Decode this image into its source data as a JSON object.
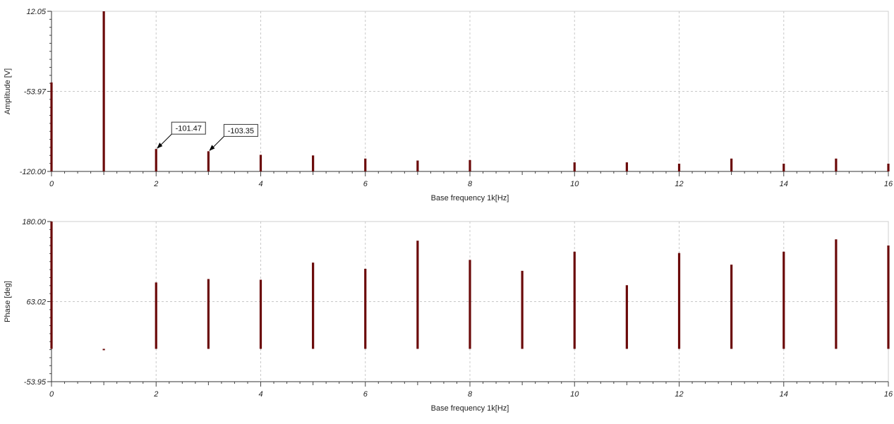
{
  "chart_data": [
    {
      "type": "bar",
      "xlabel": "Base frequency 1k[Hz]",
      "ylabel": "Amplitude [V]",
      "ylim": [
        -120.0,
        12.05
      ],
      "xlim": [
        0,
        16
      ],
      "y_ticks": [
        "12.05",
        "-53.97",
        "-120.00"
      ],
      "y_tick_values": [
        12.05,
        -53.97,
        -120.0
      ],
      "x_ticks": [
        "0",
        "2",
        "4",
        "6",
        "8",
        "10",
        "12",
        "14",
        "16"
      ],
      "grid": true,
      "series": [
        {
          "color": "#6b0a0a",
          "x": [
            0,
            1,
            2,
            3,
            4,
            5,
            6,
            7,
            8,
            10,
            11,
            12,
            13,
            14,
            15,
            16
          ],
          "values": [
            -46.6,
            12.05,
            -101.47,
            -103.35,
            -106.3,
            -106.8,
            -109.4,
            -111.0,
            -110.6,
            -112.5,
            -112.5,
            -113.6,
            -109.4,
            -113.6,
            -109.4,
            -113.6
          ]
        }
      ],
      "annotations": [
        {
          "x": 2,
          "y": -101.47,
          "text": "-101.47"
        },
        {
          "x": 3,
          "y": -103.35,
          "text": "-103.35"
        }
      ]
    },
    {
      "type": "bar",
      "xlabel": "Base frequency 1k[Hz]",
      "ylabel": "Phase [deg]",
      "ylim": [
        -53.95,
        180.0
      ],
      "xlim": [
        0,
        16
      ],
      "baseline": -6.0,
      "y_ticks": [
        "180.00",
        "63.02",
        "-53.95"
      ],
      "y_tick_values": [
        180.0,
        63.02,
        -53.95
      ],
      "x_ticks": [
        "0",
        "2",
        "4",
        "6",
        "8",
        "10",
        "12",
        "14",
        "16"
      ],
      "grid": true,
      "series": [
        {
          "color": "#6b0a0a",
          "x": [
            0,
            1,
            2,
            3,
            4,
            5,
            6,
            7,
            8,
            9,
            10,
            11,
            12,
            13,
            14,
            15,
            16
          ],
          "values": [
            180.0,
            -8.0,
            91.0,
            96.0,
            95.0,
            120.0,
            111.0,
            152.0,
            124.0,
            108.0,
            136.0,
            87.0,
            134.0,
            117.0,
            136.0,
            154.0,
            145.0
          ]
        }
      ]
    }
  ]
}
